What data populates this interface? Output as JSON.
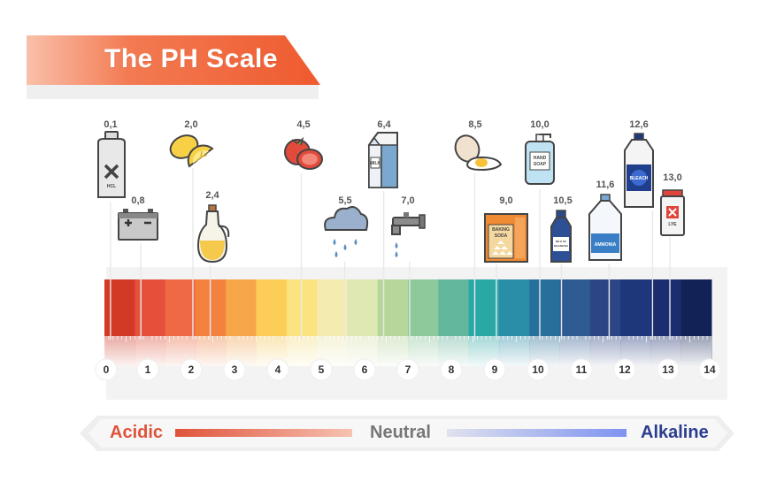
{
  "title": "The PH Scale",
  "scale": {
    "numbers": [
      "0",
      "1",
      "2",
      "3",
      "4",
      "5",
      "6",
      "7",
      "8",
      "9",
      "10",
      "11",
      "12",
      "13",
      "14"
    ],
    "segment_colors": [
      "#d33a26",
      "#e4503a",
      "#ef6a44",
      "#f3823e",
      "#f7a64a",
      "#fccd57",
      "#fbe47f",
      "#f3ecae",
      "#dfe7b3",
      "#b6d79b",
      "#8dc99a",
      "#62b79c",
      "#29a8a6",
      "#2a8ea9",
      "#27709b",
      "#2f5b93",
      "#2c4685",
      "#1e377a",
      "#1a2d6e",
      "#132256"
    ],
    "marker_values": [
      0.1,
      0.8,
      2.0,
      2.4,
      4.5,
      5.5,
      6.4,
      7.0,
      8.5,
      9.0,
      10.0,
      10.5,
      11.6,
      12.6,
      13.0
    ]
  },
  "items": [
    {
      "value": "0,1",
      "icon": "hcl-bottle-icon",
      "label": "HCL"
    },
    {
      "value": "0,8",
      "icon": "car-battery-icon"
    },
    {
      "value": "2,0",
      "icon": "lemon-icon"
    },
    {
      "value": "2,4",
      "icon": "vinegar-bottle-icon"
    },
    {
      "value": "4,5",
      "icon": "tomato-icon"
    },
    {
      "value": "5,5",
      "icon": "rain-cloud-icon"
    },
    {
      "value": "6,4",
      "icon": "milk-carton-icon",
      "label": "MILK"
    },
    {
      "value": "7,0",
      "icon": "water-tap-icon"
    },
    {
      "value": "8,5",
      "icon": "egg-icon"
    },
    {
      "value": "9,0",
      "icon": "baking-soda-icon",
      "label": "BAKING SODA"
    },
    {
      "value": "10,0",
      "icon": "hand-soap-icon",
      "label": "HAND SOAP"
    },
    {
      "value": "10,5",
      "icon": "milk-of-magnesia-icon",
      "label": "MILK OF MAGNESIA"
    },
    {
      "value": "11,6",
      "icon": "ammonia-jug-icon",
      "label": "AMMONIA"
    },
    {
      "value": "12,6",
      "icon": "bleach-jug-icon",
      "label": "BLEACH"
    },
    {
      "value": "13,0",
      "icon": "lye-jar-icon",
      "label": "LYE"
    }
  ],
  "legend": {
    "acidic": "Acidic",
    "neutral": "Neutral",
    "alkaline": "Alkaline",
    "acidic_color": "#e0533a",
    "neutral_color": "#777777",
    "alkaline_color": "#2b3d8f"
  },
  "colors": {
    "banner": "#f0643a",
    "banner_light": "#f7a487"
  }
}
